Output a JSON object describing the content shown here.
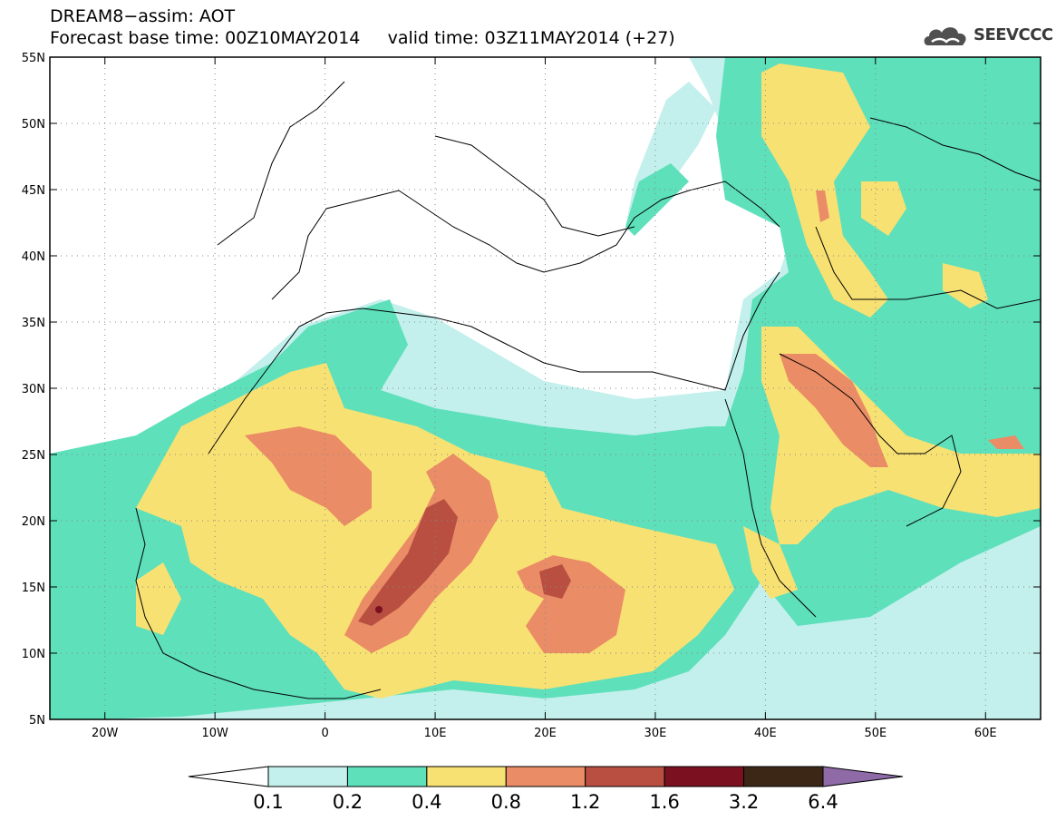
{
  "title": {
    "line1": "DREAM8−assim: AOT",
    "line2": "Forecast base time: 00Z10MAY2014     valid time: 03Z11MAY2014 (+27)"
  },
  "logo": {
    "text": "SEEVCCC",
    "icon": "cloud-icon"
  },
  "map": {
    "lon_range": [
      -25,
      65
    ],
    "lat_range": [
      5,
      55
    ],
    "lon_ticks": [
      {
        "value": -20,
        "label": "20W"
      },
      {
        "value": -10,
        "label": "10W"
      },
      {
        "value": 0,
        "label": "0"
      },
      {
        "value": 10,
        "label": "10E"
      },
      {
        "value": 20,
        "label": "20E"
      },
      {
        "value": 30,
        "label": "30E"
      },
      {
        "value": 40,
        "label": "40E"
      },
      {
        "value": 50,
        "label": "50E"
      },
      {
        "value": 60,
        "label": "60E"
      }
    ],
    "lat_ticks": [
      {
        "value": 5,
        "label": "5N"
      },
      {
        "value": 10,
        "label": "10N"
      },
      {
        "value": 15,
        "label": "15N"
      },
      {
        "value": 20,
        "label": "20N"
      },
      {
        "value": 25,
        "label": "25N"
      },
      {
        "value": 30,
        "label": "30N"
      },
      {
        "value": 35,
        "label": "35N"
      },
      {
        "value": 40,
        "label": "40N"
      },
      {
        "value": 45,
        "label": "45N"
      },
      {
        "value": 50,
        "label": "50N"
      },
      {
        "value": 55,
        "label": "55N"
      }
    ],
    "grid": "dotted"
  },
  "colorbar": {
    "labels": [
      "0.1",
      "0.2",
      "0.4",
      "0.8",
      "1.2",
      "1.6",
      "3.2",
      "6.4"
    ],
    "colors": [
      "#c3f0ec",
      "#5ee0bb",
      "#f8e173",
      "#ea8c65",
      "#b84f40",
      "#7a1020",
      "#3c2616"
    ],
    "under_color": "#ffffff",
    "over_color": "#8e6aa6"
  },
  "colors": {
    "c1": "#c3f0ec",
    "c2": "#5ee0bb",
    "c3": "#f8e173",
    "c4": "#ea8c65",
    "c5": "#b84f40",
    "c6": "#7a1020"
  }
}
